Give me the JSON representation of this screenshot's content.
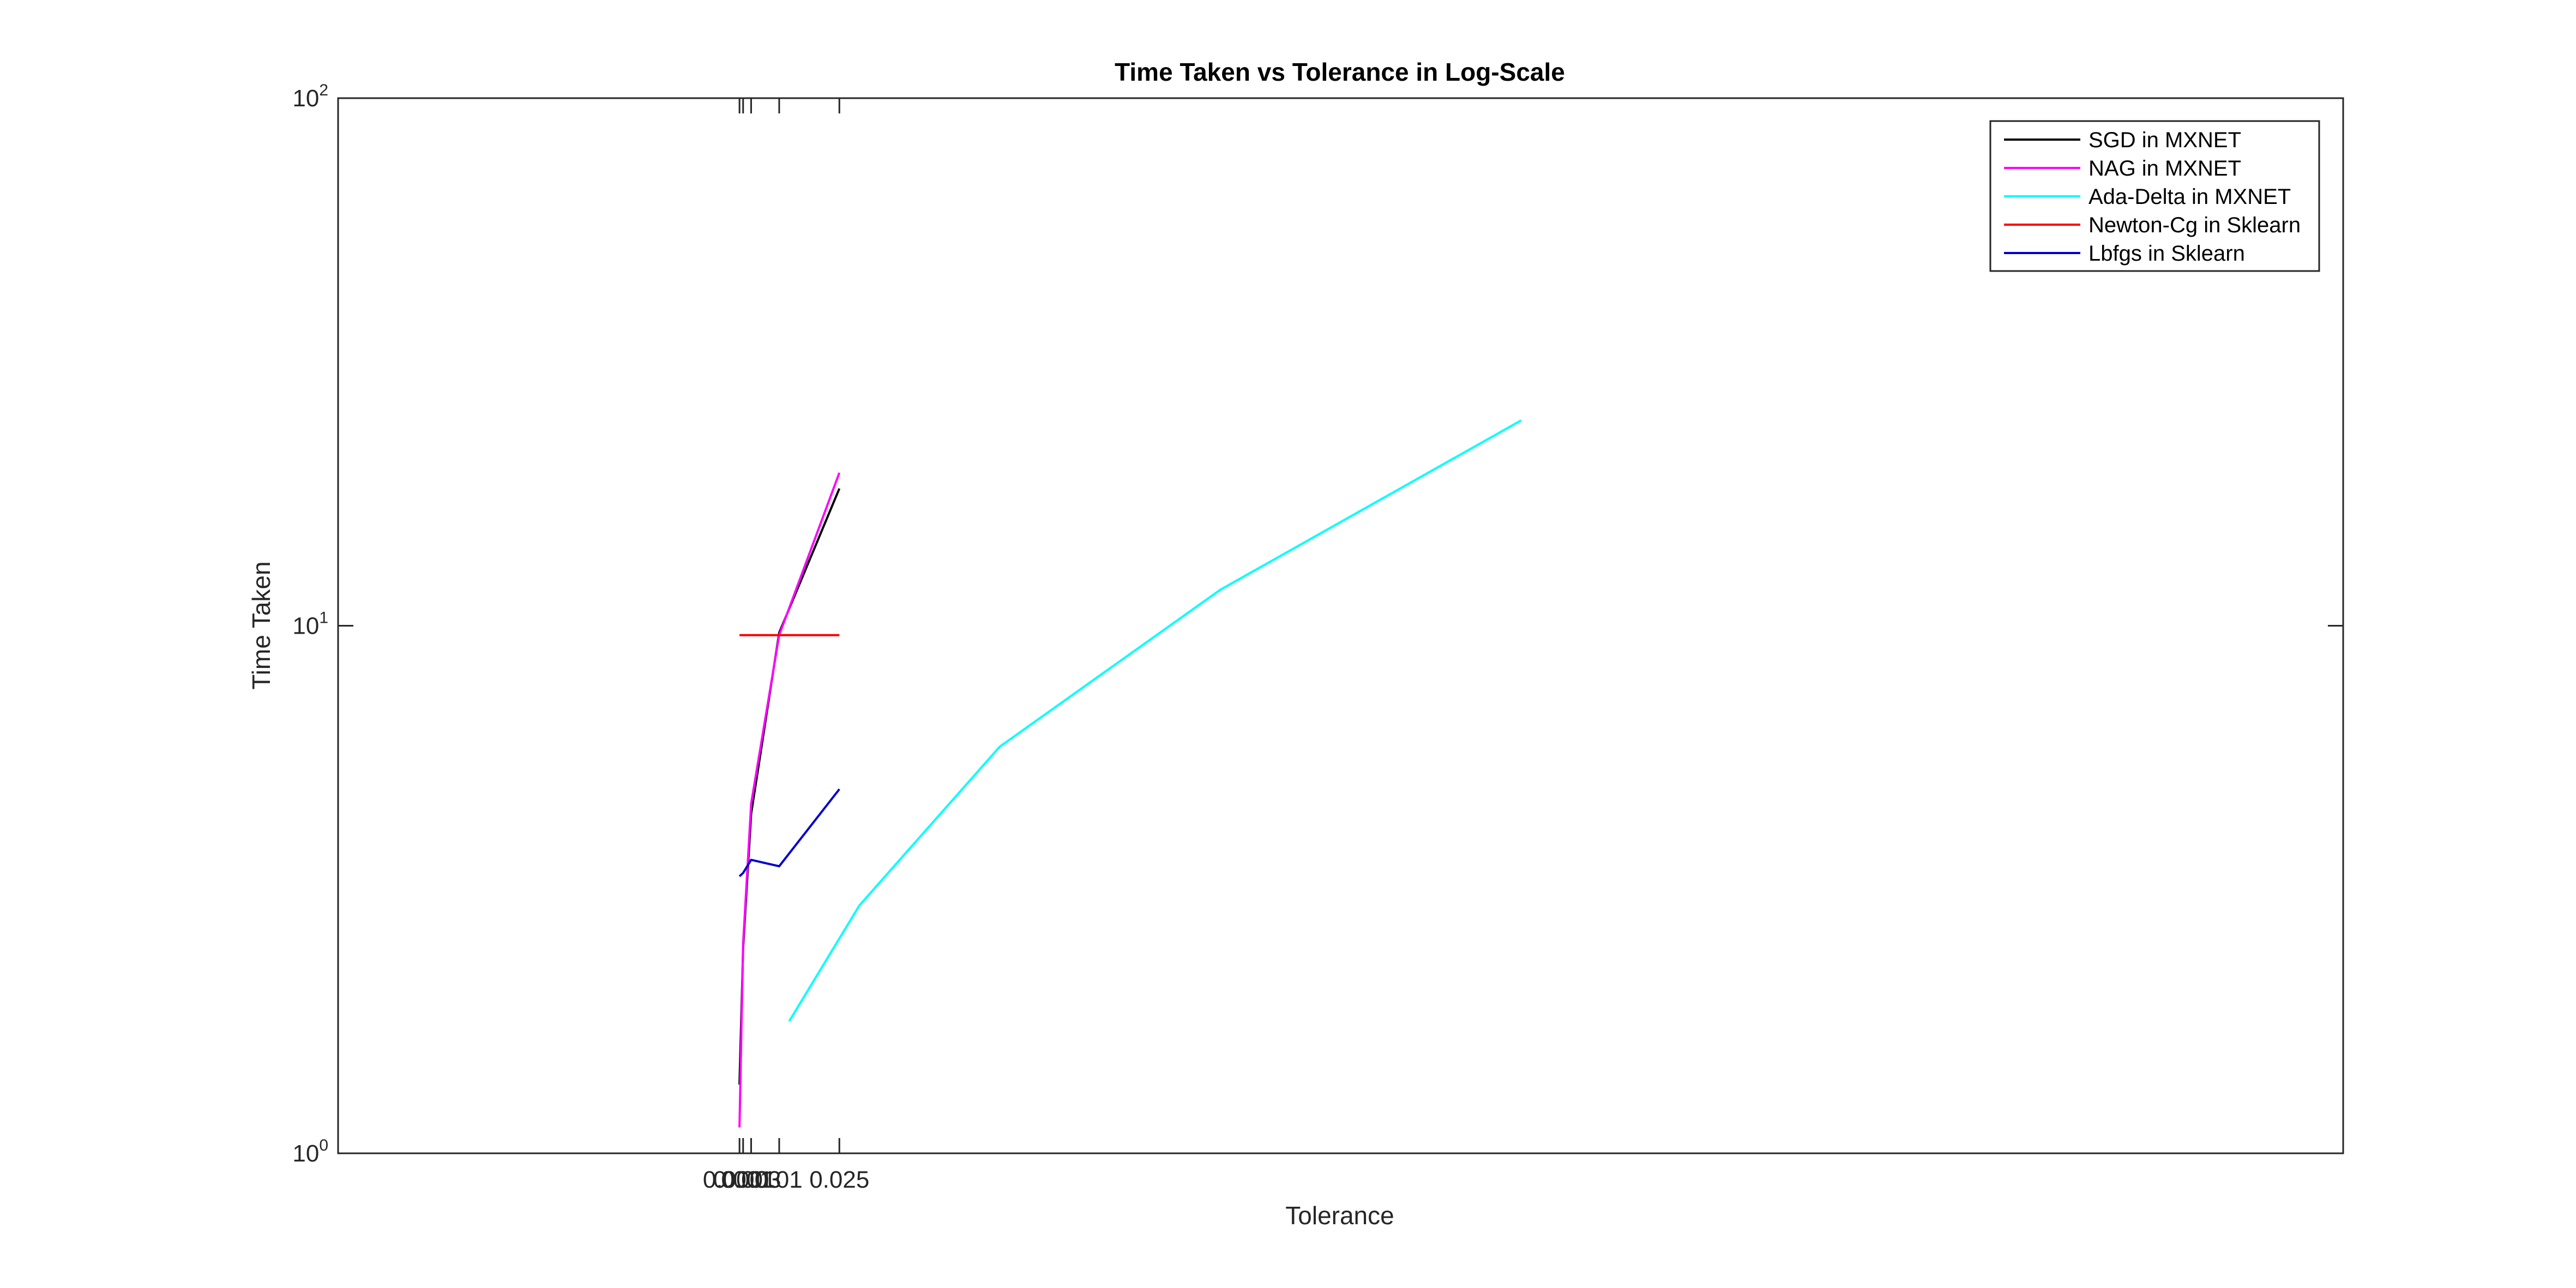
{
  "chart_data": {
    "type": "line",
    "title": "Time Taken vs Tolerance in Log-Scale",
    "xlabel": "Tolerance",
    "ylabel": "Time Taken",
    "yscale": "log",
    "xlim": [
      -0.1,
      0.4
    ],
    "ylim": [
      1,
      100
    ],
    "grid": false,
    "legend_position": "top-right",
    "x_ticks": [
      0.0001,
      0.001,
      0.003,
      0.01,
      0.025
    ],
    "x_tick_labels": [
      "0.0001",
      "0.001",
      "0.003",
      "0.01",
      "0.025"
    ],
    "y_ticks": [
      {
        "value": 1,
        "base": "10",
        "exp": "0"
      },
      {
        "value": 10,
        "base": "10",
        "exp": "1"
      },
      {
        "value": 100,
        "base": "10",
        "exp": "2"
      }
    ],
    "series": [
      {
        "name": "SGD in MXNET",
        "color": "#000000",
        "x": [
          0.0001,
          0.001,
          0.003,
          0.01,
          0.025
        ],
        "y": [
          1.35,
          2.45,
          4.4,
          9.7,
          18.2
        ]
      },
      {
        "name": "NAG in MXNET",
        "color": "#ff00ff",
        "x": [
          0.0001,
          0.001,
          0.003,
          0.01,
          0.025
        ],
        "y": [
          1.12,
          2.5,
          4.6,
          9.6,
          19.5
        ]
      },
      {
        "name": "Ada-Delta in MXNET",
        "color": "#00ffff",
        "x": [
          0.0125,
          0.03,
          0.065,
          0.12,
          0.195
        ],
        "y": [
          1.78,
          2.95,
          5.9,
          11.7,
          24.5
        ]
      },
      {
        "name": "Newton-Cg in Sklearn",
        "color": "#ff0000",
        "x": [
          0.0001,
          0.001,
          0.003,
          0.01,
          0.025
        ],
        "y": [
          9.6,
          9.6,
          9.6,
          9.6,
          9.6
        ]
      },
      {
        "name": "Lbfgs in Sklearn",
        "color": "#0000cc",
        "x": [
          0.0001,
          0.001,
          0.003,
          0.01,
          0.025
        ],
        "y": [
          3.35,
          3.4,
          3.6,
          3.5,
          4.9
        ]
      }
    ]
  }
}
